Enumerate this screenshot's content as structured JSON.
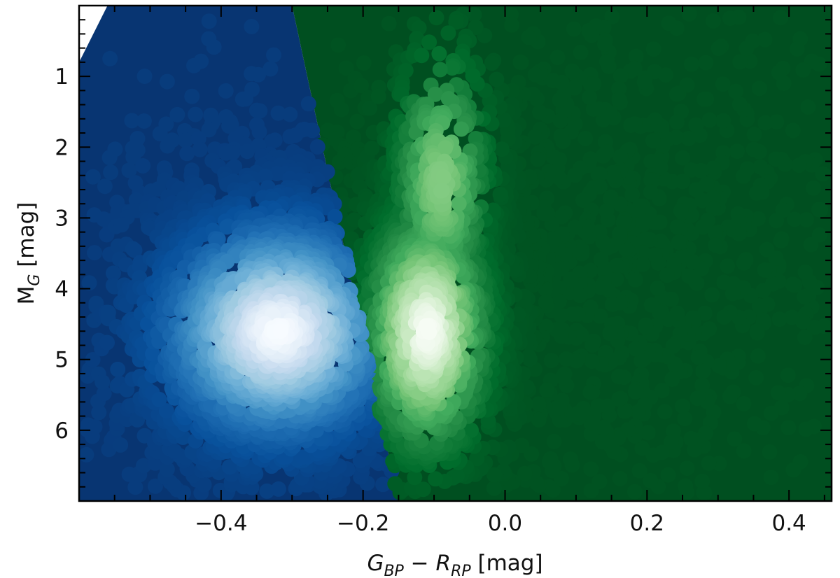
{
  "chart_data": {
    "type": "scatter",
    "title": "",
    "xlabel": {
      "main": "G",
      "sub1": "BP",
      "mid": " − R",
      "sub2": "RP",
      "unit": " [mag]"
    },
    "ylabel": {
      "main": "M",
      "sub": "G",
      "unit": " [mag]"
    },
    "xlim": [
      -0.6,
      0.46
    ],
    "ylim": [
      7.0,
      0.0
    ],
    "y_inverted": true,
    "grid": false,
    "x_ticks": [
      -0.4,
      -0.2,
      0.0,
      0.2,
      0.4
    ],
    "x_tick_labels": [
      "−0.4",
      "−0.2",
      "0.0",
      "0.2",
      "0.4"
    ],
    "x_minor_step": 0.05,
    "y_ticks": [
      1,
      2,
      3,
      4,
      5,
      6
    ],
    "y_tick_labels": [
      "1",
      "2",
      "3",
      "4",
      "5",
      "6"
    ],
    "y_minor_step": 0.2,
    "series": [
      {
        "name": "blue population",
        "colormap": [
          "#08306b",
          "#08519c",
          "#2171b5",
          "#4292c6",
          "#6baed6",
          "#9ecae1",
          "#c6dbef",
          "#f7fbff"
        ],
        "density_peak": {
          "x": -0.32,
          "y": 4.6
        },
        "spread": {
          "x": 0.1,
          "y": 1.1
        },
        "boundary": {
          "top_x": -0.3,
          "bottom_x": -0.15
        }
      },
      {
        "name": "green population",
        "colormap": [
          "#00441b",
          "#006d2c",
          "#238b45",
          "#41ab5d",
          "#74c476",
          "#a1d99b",
          "#c7e9c0",
          "#f7fcf5"
        ],
        "density_peak": {
          "x": -0.11,
          "y": 4.6
        },
        "spread": {
          "x": 0.05,
          "y": 1.3
        },
        "boundary": {
          "top_x": -0.3,
          "bottom_x": -0.15
        }
      }
    ]
  }
}
